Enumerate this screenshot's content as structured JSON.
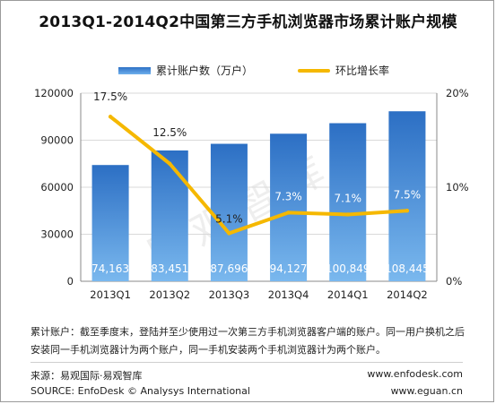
{
  "title": "2013Q1-2014Q2中国第三方手机浏览器市场累计账户规模",
  "legend": {
    "bar_label": "累计账户数（万户）",
    "line_label": "环比增长率"
  },
  "watermark": "易观智库",
  "colors": {
    "bar_top": "#2c6fc4",
    "bar_bottom": "#7ab8ee",
    "line": "#f5b800",
    "grid": "#d9d9d9"
  },
  "chart_data": {
    "type": "bar",
    "categories": [
      "2013Q1",
      "2013Q2",
      "2013Q3",
      "2013Q4",
      "2014Q1",
      "2014Q2"
    ],
    "series": [
      {
        "name": "累计账户数（万户）",
        "type": "bar",
        "axis": "left",
        "values": [
          74163,
          83451,
          87696,
          94127,
          100849,
          108445
        ],
        "labels": [
          "74,163",
          "83,451",
          "87,696",
          "94,127",
          "100,849",
          "108,445"
        ]
      },
      {
        "name": "环比增长率",
        "type": "line",
        "axis": "right",
        "values": [
          17.5,
          12.5,
          5.1,
          7.3,
          7.1,
          7.5
        ],
        "labels": [
          "17.5%",
          "12.5%",
          "5.1%",
          "7.3%",
          "7.1%",
          "7.5%"
        ]
      }
    ],
    "y_left": {
      "ylim": [
        0,
        120000
      ],
      "ticks": [
        "0",
        "30000",
        "60000",
        "90000",
        "120000"
      ]
    },
    "y_right": {
      "ylim": [
        0,
        20
      ],
      "ticks": [
        "0%",
        "10%",
        "20%"
      ]
    },
    "grid": true,
    "legend_position": "top"
  },
  "note": {
    "line1": "累计账户：截至季度末，登陆并至少使用过一次第三方手机浏览器客户端的账户。同一用户换机之后",
    "line2": "安装同一手机浏览器计为两个账户，同一手机安装两个手机浏览器计为两个账户。"
  },
  "source": {
    "cn": "来源：易观国际·易观智库",
    "en": "SOURCE: EnfoDesk © Analysys International",
    "url1": "www.enfodesk.com",
    "url2": "www.eguan.cn"
  }
}
